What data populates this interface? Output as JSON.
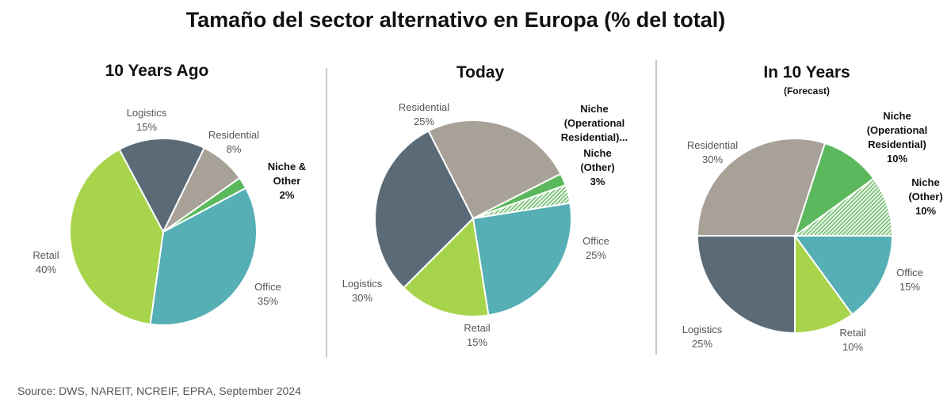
{
  "title": "Tamaño del sector alternativo en Europa (% del total)",
  "source": "Source: DWS, NAREIT, NCREIF, EPRA, September 2024",
  "colors": {
    "dark": "#5a6b77",
    "taupe": "#a8a198",
    "green": "#5cb85c",
    "hatch": "#4caf50",
    "teal": "#56afb4",
    "lime": "#a8d44c",
    "text": "#555555"
  },
  "chart_data": [
    {
      "type": "pie",
      "title": "10 Years Ago",
      "subtitle": "",
      "slices": [
        {
          "name": "Office",
          "value": 35,
          "name_label": "Office",
          "value_label": "35%",
          "color": "#56afb4"
        },
        {
          "name": "Retail",
          "value": 40,
          "name_label": "Retail",
          "value_label": "40%",
          "color": "#a8d44c"
        },
        {
          "name": "Logistics",
          "value": 15,
          "name_label": "Logistics",
          "value_label": "15%",
          "color": "#5a6b77"
        },
        {
          "name": "Residential",
          "value": 8,
          "name_label": "Residential",
          "value_label": "8%",
          "color": "#a8a198"
        },
        {
          "name": "Niche & Other",
          "value": 2,
          "name_label": "Niche &",
          "name_label_2": "Other",
          "value_label": "2%",
          "color": "#5cb85c"
        }
      ]
    },
    {
      "type": "pie",
      "title": "Today",
      "subtitle": "",
      "slices": [
        {
          "name": "Office",
          "value": 25,
          "name_label": "Office",
          "value_label": "25%",
          "color": "#56afb4"
        },
        {
          "name": "Retail",
          "value": 15,
          "name_label": "Retail",
          "value_label": "15%",
          "color": "#a8d44c"
        },
        {
          "name": "Logistics",
          "value": 30,
          "name_label": "Logistics",
          "value_label": "30%",
          "color": "#5a6b77"
        },
        {
          "name": "Residential",
          "value": 25,
          "name_label": "Residential",
          "value_label": "25%",
          "color": "#a8a198"
        },
        {
          "name": "Niche (Operational Residential)",
          "value": 2,
          "name_label": "Niche",
          "name_label_2": "(Operational",
          "name_label_3": "Residential)...",
          "value_label": "",
          "color": "#5cb85c"
        },
        {
          "name": "Niche (Other)",
          "value": 3,
          "name_label": "Niche",
          "name_label_2": "(Other)",
          "value_label": "3%",
          "color": "hatch"
        }
      ]
    },
    {
      "type": "pie",
      "title": "In 10 Years",
      "subtitle": "(Forecast)",
      "slices": [
        {
          "name": "Office",
          "value": 15,
          "name_label": "Office",
          "value_label": "15%",
          "color": "#56afb4"
        },
        {
          "name": "Retail",
          "value": 10,
          "name_label": "Retail",
          "value_label": "10%",
          "color": "#a8d44c"
        },
        {
          "name": "Logistics",
          "value": 25,
          "name_label": "Logistics",
          "value_label": "25%",
          "color": "#5a6b77"
        },
        {
          "name": "Residential",
          "value": 30,
          "name_label": "Residential",
          "value_label": "30%",
          "color": "#a8a198"
        },
        {
          "name": "Niche (Operational Residential)",
          "value": 10,
          "name_label": "Niche",
          "name_label_2": "(Operational",
          "name_label_3": "Residential)",
          "value_label": "10%",
          "color": "#5cb85c"
        },
        {
          "name": "Niche (Other)",
          "value": 10,
          "name_label": "Niche",
          "name_label_2": "(Other)",
          "value_label": "10%",
          "color": "hatch"
        }
      ]
    }
  ]
}
